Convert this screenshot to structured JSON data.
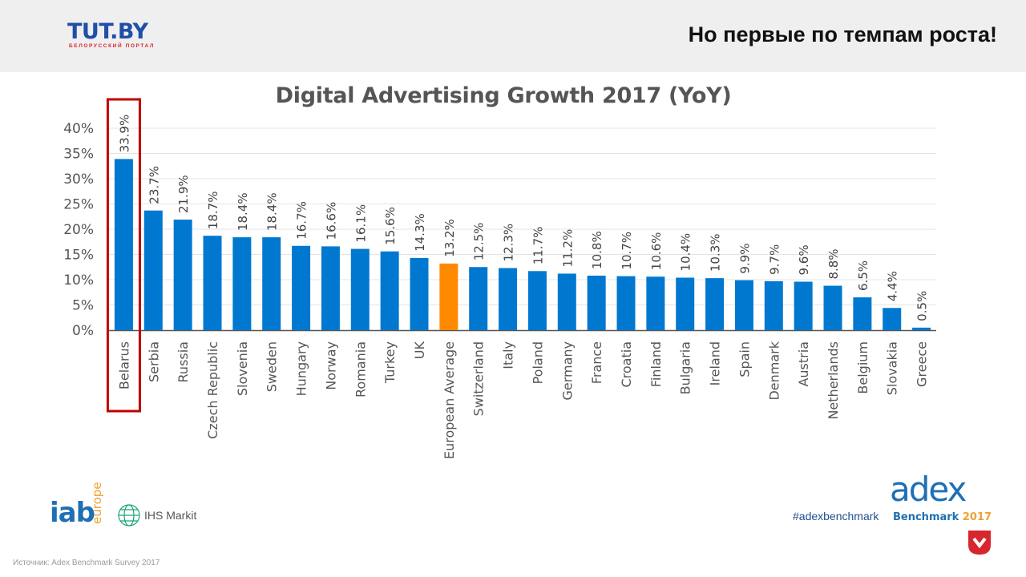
{
  "header": {
    "logo_text": "TUT.BY",
    "logo_sub": "БЕЛОРУССКИЙ ПОРТАЛ",
    "title": "Но первые по темпам роста!"
  },
  "colors": {
    "bar": "#0078d0",
    "highlight_bar": "#ff8a00",
    "highlight_box": "#c00000",
    "grid": "#e4e4e4",
    "header_bg": "#efefef"
  },
  "chart_data": {
    "type": "bar",
    "title": "Digital Advertising Growth 2017 (YoY)",
    "categories": [
      "Belarus",
      "Serbia",
      "Russia",
      "Czech Republic",
      "Slovenia",
      "Sweden",
      "Hungary",
      "Norway",
      "Romania",
      "Turkey",
      "UK",
      "European Average",
      "Switzerland",
      "Italy",
      "Poland",
      "Germany",
      "France",
      "Croatia",
      "Finland",
      "Bulgaria",
      "Ireland",
      "Spain",
      "Denmark",
      "Austria",
      "Netherlands",
      "Belgium",
      "Slovakia",
      "Greece"
    ],
    "values": [
      33.9,
      23.7,
      21.9,
      18.7,
      18.4,
      18.4,
      16.7,
      16.6,
      16.1,
      15.6,
      14.3,
      13.2,
      12.5,
      12.3,
      11.7,
      11.2,
      10.8,
      10.7,
      10.6,
      10.4,
      10.3,
      9.9,
      9.7,
      9.6,
      8.8,
      6.5,
      4.4,
      0.5
    ],
    "value_labels": [
      "33.9%",
      "23.7%",
      "21.9%",
      "18.7%",
      "18.4%",
      "18.4%",
      "16.7%",
      "16.6%",
      "16.1%",
      "15.6%",
      "14.3%",
      "13.2%",
      "12.5%",
      "12.3%",
      "11.7%",
      "11.2%",
      "10.8%",
      "10.7%",
      "10.6%",
      "10.4%",
      "10.3%",
      "9.9%",
      "9.7%",
      "9.6%",
      "8.8%",
      "6.5%",
      "4.4%",
      "0.5%"
    ],
    "yticks": [
      0,
      5,
      10,
      15,
      20,
      25,
      30,
      35,
      40
    ],
    "ytick_labels": [
      "0%",
      "5%",
      "10%",
      "15%",
      "20%",
      "25%",
      "30%",
      "35%",
      "40%"
    ],
    "ylim": [
      0,
      40
    ],
    "grid": true,
    "highlight_category": "European Average",
    "boxed_category": "Belarus"
  },
  "footer": {
    "iab_word": "iab",
    "iab_sub": "europe",
    "ihs_text": "IHS Markit",
    "hashtag": "#adexbenchmark",
    "adex_word": "adex",
    "adex_sub": "Benchmark",
    "adex_year": "2017",
    "source": "Источник: Adex Benchmark Survey 2017"
  }
}
